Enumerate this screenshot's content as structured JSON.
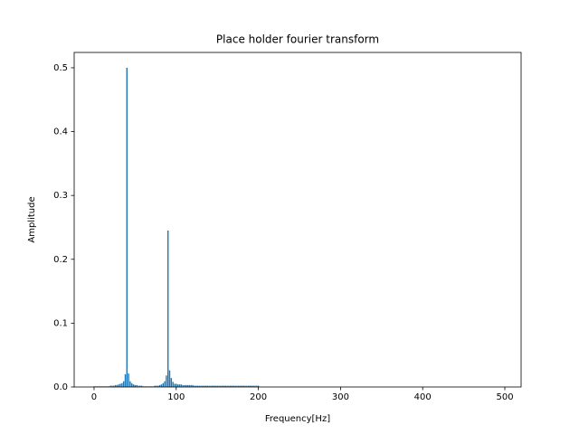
{
  "chart_data": {
    "type": "bar",
    "title": "Place holder fourier transform",
    "xlabel": "Frequency[Hz]",
    "ylabel": "Amplitude",
    "color": "#1f77b4",
    "x": [
      0,
      2,
      4,
      6,
      8,
      10,
      12,
      14,
      16,
      18,
      20,
      22,
      24,
      26,
      28,
      30,
      32,
      34,
      36,
      38,
      40,
      42,
      44,
      46,
      48,
      50,
      52,
      54,
      56,
      58,
      60,
      62,
      64,
      66,
      68,
      70,
      72,
      74,
      76,
      78,
      80,
      82,
      84,
      86,
      88,
      90,
      92,
      94,
      96,
      98,
      100,
      102,
      104,
      106,
      108,
      110,
      112,
      114,
      116,
      118,
      120,
      122,
      124,
      126,
      128,
      130,
      132,
      134,
      136,
      138,
      140,
      142,
      144,
      146,
      148,
      150,
      152,
      154,
      156,
      158,
      160,
      162,
      164,
      166,
      168,
      170,
      172,
      174,
      176,
      178,
      180,
      182,
      184,
      186,
      188,
      190,
      192,
      194,
      196,
      198,
      200
    ],
    "values": [
      0.001,
      0.001,
      0.001,
      0.001,
      0.001,
      0.001,
      0.001,
      0.001,
      0.001,
      0.001,
      0.002,
      0.002,
      0.002,
      0.003,
      0.003,
      0.004,
      0.005,
      0.006,
      0.009,
      0.02,
      0.5,
      0.021,
      0.009,
      0.006,
      0.004,
      0.003,
      0.003,
      0.002,
      0.002,
      0.002,
      0.001,
      0.001,
      0.001,
      0.001,
      0.001,
      0.001,
      0.001,
      0.002,
      0.002,
      0.002,
      0.003,
      0.004,
      0.006,
      0.009,
      0.018,
      0.245,
      0.026,
      0.014,
      0.008,
      0.005,
      0.005,
      0.004,
      0.004,
      0.004,
      0.003,
      0.003,
      0.003,
      0.003,
      0.003,
      0.003,
      0.003,
      0.002,
      0.002,
      0.002,
      0.002,
      0.002,
      0.002,
      0.002,
      0.002,
      0.002,
      0.002,
      0.002,
      0.002,
      0.002,
      0.002,
      0.002,
      0.002,
      0.002,
      0.002,
      0.002,
      0.002,
      0.002,
      0.002,
      0.002,
      0.002,
      0.002,
      0.002,
      0.002,
      0.002,
      0.002,
      0.002,
      0.002,
      0.002,
      0.002,
      0.002,
      0.002,
      0.002,
      0.002,
      0.002,
      0.002,
      0.002
    ],
    "xlim": [
      -24.2,
      519.8
    ],
    "xticks": [
      0,
      100,
      200,
      300,
      400,
      500
    ],
    "ylim": [
      0,
      0.524
    ],
    "yticks": [
      {
        "value": 0,
        "label": "0.0"
      },
      0.1,
      0.2,
      0.3,
      0.4,
      0.5
    ]
  }
}
